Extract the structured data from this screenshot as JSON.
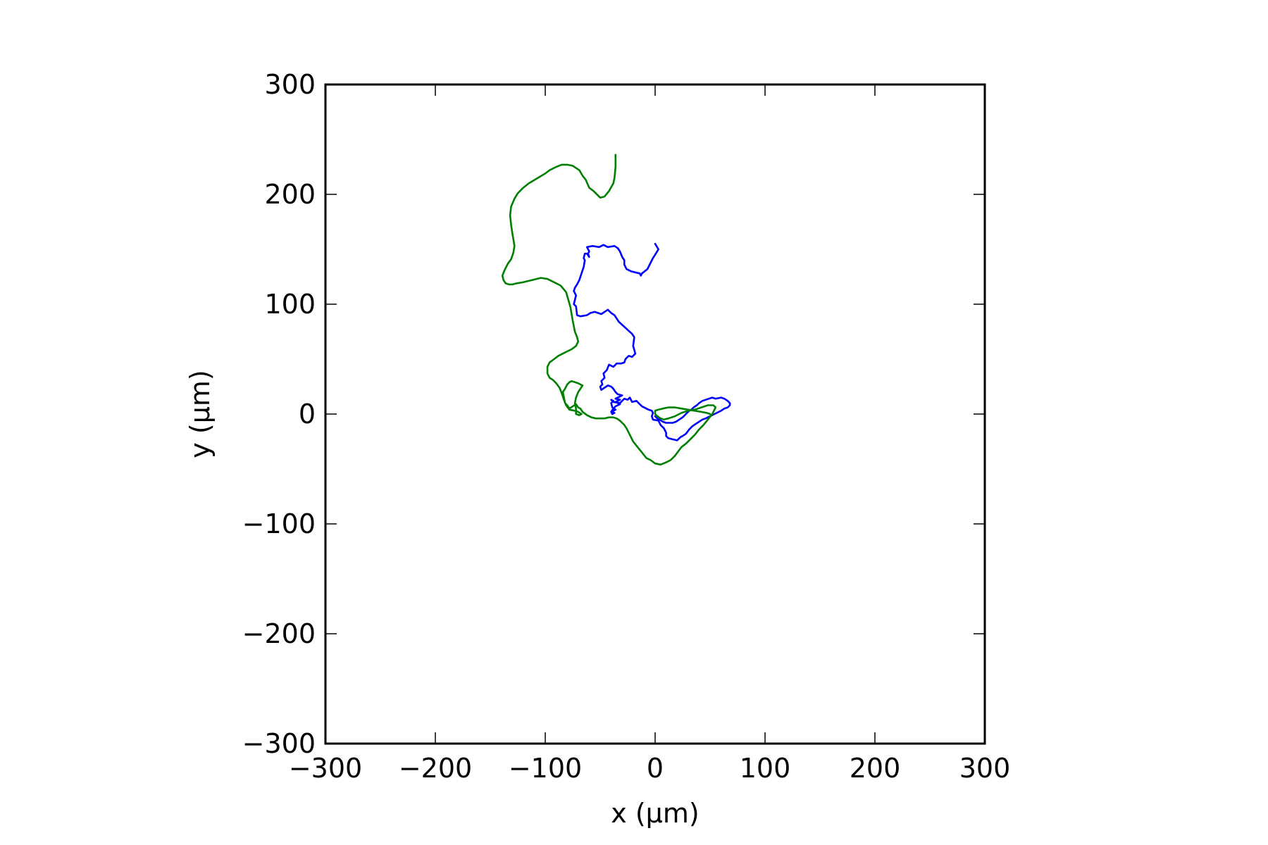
{
  "chart_data": {
    "type": "line",
    "title": "",
    "xlabel": "x (µm)",
    "ylabel": "y (µm)",
    "xlim": [
      -300,
      300
    ],
    "ylim": [
      -300,
      300
    ],
    "xticks": [
      -300,
      -200,
      -100,
      0,
      100,
      200,
      300
    ],
    "yticks": [
      -300,
      -200,
      -100,
      0,
      100,
      200,
      300
    ],
    "xtick_labels": [
      "−300",
      "−200",
      "−100",
      "0",
      "100",
      "200",
      "300"
    ],
    "ytick_labels": [
      "−300",
      "−200",
      "−100",
      "0",
      "100",
      "200",
      "300"
    ],
    "grid": false,
    "legend": false,
    "series": [
      {
        "color": "#0000ff",
        "x": [
          0,
          3,
          0,
          -2,
          -4,
          -7,
          -12,
          -13,
          -14,
          -18,
          -22,
          -26,
          -28,
          -28,
          -30,
          -32,
          -34,
          -37,
          -43,
          -47,
          -51,
          -57,
          -62,
          -60,
          -61,
          -60,
          -62,
          -64,
          -65,
          -64,
          -65,
          -67,
          -69,
          -71,
          -73,
          -74,
          -72,
          -74,
          -72,
          -71,
          -68,
          -62,
          -59,
          -55,
          -49,
          -43,
          -42,
          -40,
          -37,
          -35,
          -33,
          -21,
          -19,
          -20,
          -18,
          -20,
          -21,
          -24,
          -26,
          -27,
          -28,
          -31,
          -35,
          -38,
          -42,
          -44,
          -47,
          -46,
          -49,
          -48,
          -50,
          -49,
          -46,
          -43,
          -40,
          -38,
          -36,
          -34,
          -30,
          -36,
          -32,
          -36,
          -32,
          -36,
          -38,
          -40,
          -37,
          -39,
          -40,
          -38,
          -36,
          -39,
          -40,
          -38,
          -40,
          -38,
          -32,
          -30,
          -28,
          -25,
          -23,
          -21,
          -17,
          -14,
          -12,
          -10,
          -8,
          -6,
          -3,
          -2,
          -3,
          -2,
          3,
          5,
          8,
          10,
          10,
          12,
          16,
          20,
          23,
          25,
          28,
          31,
          34,
          37,
          40,
          43,
          46,
          50,
          56,
          60,
          63,
          66,
          68,
          68,
          66,
          63,
          60,
          55,
          52,
          49,
          46,
          43,
          40,
          38,
          35,
          33,
          31,
          29,
          27,
          25,
          22,
          19,
          16,
          13,
          10,
          7,
          4,
          2,
          0
        ],
        "y": [
          155,
          150,
          145,
          142,
          138,
          132,
          128,
          126,
          128,
          129,
          130,
          132,
          136,
          140,
          143,
          148,
          151,
          153,
          152,
          154,
          152,
          153,
          152,
          148,
          146,
          143,
          146,
          146,
          142,
          140,
          134,
          128,
          122,
          118,
          115,
          112,
          108,
          100,
          98,
          90,
          89,
          90,
          92,
          93,
          91,
          95,
          94,
          92,
          90,
          87,
          84,
          73,
          70,
          62,
          55,
          53,
          52,
          53,
          51,
          50,
          47,
          46,
          46,
          43,
          45,
          40,
          37,
          33,
          30,
          27,
          25,
          22,
          24,
          26,
          25,
          23,
          20,
          18,
          17,
          14,
          13,
          11,
          9,
          7,
          5,
          2,
          1,
          0,
          2,
          3,
          4,
          6,
          10,
          12,
          13,
          11,
          10,
          12,
          14,
          13,
          15,
          11,
          12,
          9,
          7,
          6,
          5,
          4,
          3,
          1,
          -2,
          -5,
          -6,
          -10,
          -13,
          -17,
          -20,
          -22,
          -23,
          -24,
          -21,
          -20,
          -18,
          -14,
          -11,
          -9,
          -7,
          -5,
          -4,
          -2,
          1,
          3,
          5,
          6,
          8,
          10,
          12,
          14,
          15,
          14,
          15,
          14,
          13,
          12,
          10,
          8,
          6,
          4,
          3,
          1,
          -1,
          -3,
          -5,
          -7,
          -8,
          -8,
          -8,
          -7,
          -5,
          -4,
          -2
        ]
      },
      {
        "color": "#008000",
        "x": [
          -36,
          -36,
          -37,
          -38,
          -42,
          -46,
          -50,
          -52,
          -56,
          -60,
          -63,
          -66,
          -69,
          -72,
          -75,
          -80,
          -85,
          -90,
          -96,
          -100,
          -105,
          -110,
          -115,
          -120,
          -125,
          -128,
          -131,
          -132,
          -131,
          -130,
          -129,
          -128,
          -129,
          -131,
          -134,
          -137,
          -139,
          -138,
          -136,
          -133,
          -130,
          -126,
          -120,
          -112,
          -104,
          -98,
          -92,
          -86,
          -81,
          -79,
          -77,
          -76,
          -75,
          -74,
          -73,
          -71,
          -70,
          -72,
          -76,
          -82,
          -88,
          -92,
          -96,
          -98,
          -98,
          -96,
          -93,
          -90,
          -87,
          -85,
          -83,
          -81,
          -78,
          -73,
          -70,
          -67,
          -69,
          -72,
          -72,
          -73,
          -72,
          -70,
          -66,
          -68,
          -70,
          -73,
          -76,
          -78,
          -80,
          -82,
          -84,
          -82,
          -80,
          -78,
          -75,
          -72,
          -70,
          -68,
          -66,
          -62,
          -58,
          -54,
          -50,
          -46,
          -42,
          -38,
          -35,
          -32,
          -30,
          -28,
          -26,
          -23,
          -20,
          -16,
          -12,
          -8,
          -4,
          0,
          5,
          10,
          14,
          18,
          21,
          24,
          28,
          32,
          36,
          40,
          44,
          48,
          52,
          54,
          55,
          53,
          48,
          42,
          36,
          30,
          24,
          18,
          12,
          8,
          5,
          2,
          0,
          0,
          3,
          7,
          12,
          18,
          24,
          30,
          36,
          42,
          47,
          50
        ],
        "y": [
          236,
          225,
          215,
          210,
          203,
          198,
          197,
          199,
          203,
          206,
          213,
          217,
          222,
          224,
          226,
          227,
          227,
          225,
          222,
          219,
          216,
          213,
          210,
          206,
          201,
          196,
          189,
          181,
          172,
          165,
          159,
          153,
          147,
          141,
          137,
          131,
          126,
          122,
          119,
          118,
          118,
          119,
          120,
          122,
          124,
          123,
          120,
          117,
          111,
          104,
          97,
          91,
          85,
          80,
          75,
          70,
          66,
          62,
          59,
          56,
          53,
          50,
          47,
          43,
          37,
          33,
          31,
          28,
          24,
          19,
          13,
          8,
          4,
          3,
          2,
          0,
          -1,
          0,
          5,
          10,
          15,
          20,
          26,
          27,
          28,
          29,
          30,
          29,
          27,
          23,
          20,
          10,
          8,
          5,
          7,
          9,
          6,
          5,
          2,
          -1,
          -3,
          -4,
          -4,
          -4,
          -3,
          -3,
          -4,
          -6,
          -8,
          -10,
          -13,
          -19,
          -25,
          -30,
          -35,
          -40,
          -42,
          -45,
          -46,
          -44,
          -42,
          -38,
          -34,
          -30,
          -27,
          -23,
          -19,
          -14,
          -10,
          -5,
          0,
          4,
          6,
          8,
          8,
          6,
          4,
          3,
          1,
          -2,
          -4,
          -5,
          -4,
          -2,
          0,
          3,
          4,
          5,
          6,
          6,
          5,
          4,
          3,
          2,
          1,
          0
        ]
      }
    ]
  }
}
